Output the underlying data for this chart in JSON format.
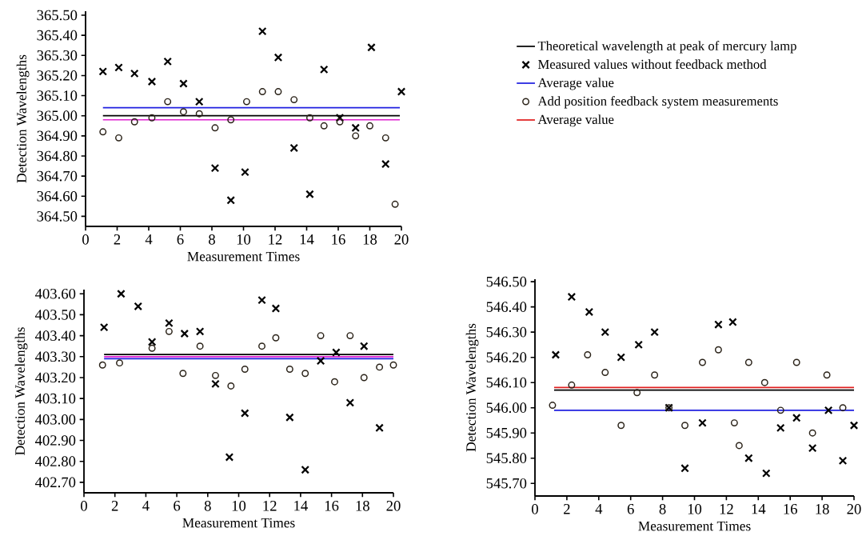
{
  "chart_data": [
    {
      "type": "scatter",
      "xlabel": "Measurement Times",
      "ylabel": "Detection Wavelengths",
      "xlim": [
        0,
        20
      ],
      "ylim": [
        364.45,
        365.52
      ],
      "xticks": [
        0,
        2,
        4,
        6,
        8,
        10,
        12,
        14,
        16,
        18,
        20
      ],
      "yticks": [
        {
          "value": 364.5,
          "label": "364.50"
        },
        {
          "value": 364.6,
          "label": "364.60"
        },
        {
          "value": 364.7,
          "label": "364.70"
        },
        {
          "value": 364.8,
          "label": "364.80"
        },
        {
          "value": 364.9,
          "label": "364.90"
        },
        {
          "value": 365.0,
          "label": "365.00"
        },
        {
          "value": 365.1,
          "label": "365.10"
        },
        {
          "value": 365.2,
          "label": "365.20"
        },
        {
          "value": 365.3,
          "label": "365.30"
        },
        {
          "value": 365.4,
          "label": "365.40"
        },
        {
          "value": 365.5,
          "label": "365.50"
        }
      ],
      "series": [
        {
          "type": "line",
          "color": "#000000",
          "x": [
            1.1,
            19.9
          ],
          "values": [
            365.0,
            365.0
          ]
        },
        {
          "marker": "cross",
          "color": "#000000",
          "x": [
            1.1,
            2.1,
            3.1,
            4.2,
            5.2,
            6.2,
            7.2,
            8.2,
            9.2,
            10.1,
            11.2,
            12.2,
            13.2,
            14.2,
            15.1,
            16.1,
            17.1,
            18.1,
            19.0,
            20.0
          ],
          "values": [
            365.22,
            365.24,
            365.21,
            365.17,
            365.27,
            365.16,
            365.07,
            364.74,
            364.58,
            364.72,
            365.42,
            365.29,
            364.84,
            364.61,
            365.23,
            364.99,
            364.94,
            365.34,
            364.76,
            365.12
          ]
        },
        {
          "type": "line",
          "color": "#2020e0",
          "x": [
            1.1,
            19.9
          ],
          "values": [
            365.04,
            365.04
          ]
        },
        {
          "marker": "circle",
          "color": "#2a2218",
          "x": [
            1.1,
            2.1,
            3.1,
            4.2,
            5.2,
            6.2,
            7.2,
            8.2,
            9.2,
            10.2,
            11.2,
            12.2,
            13.2,
            14.2,
            15.1,
            16.1,
            17.1,
            18.0,
            19.0,
            19.6
          ],
          "values": [
            364.92,
            364.89,
            364.97,
            364.99,
            365.07,
            365.02,
            365.01,
            364.94,
            364.98,
            365.07,
            365.12,
            365.12,
            365.08,
            364.99,
            364.95,
            364.97,
            364.9,
            364.95,
            364.89,
            364.56
          ]
        },
        {
          "type": "line",
          "color": "#e020d0",
          "x": [
            1.1,
            19.9
          ],
          "values": [
            364.98,
            364.98
          ]
        }
      ]
    },
    {
      "type": "scatter",
      "xlabel": "Measurement Times",
      "ylabel": "Detection Wavelengths",
      "xlim": [
        0,
        20
      ],
      "ylim": [
        402.65,
        403.62
      ],
      "xticks": [
        0,
        2,
        4,
        6,
        8,
        10,
        12,
        14,
        16,
        18,
        20
      ],
      "yticks": [
        {
          "value": 402.7,
          "label": "402.70"
        },
        {
          "value": 402.8,
          "label": "402.80"
        },
        {
          "value": 402.9,
          "label": "402.90"
        },
        {
          "value": 403.0,
          "label": "403.00"
        },
        {
          "value": 403.1,
          "label": "403.10"
        },
        {
          "value": 403.2,
          "label": "403.20"
        },
        {
          "value": 403.3,
          "label": "403.30"
        },
        {
          "value": 403.4,
          "label": "403.40"
        },
        {
          "value": 403.5,
          "label": "403.50"
        },
        {
          "value": 403.6,
          "label": "403.60"
        }
      ],
      "series": [
        {
          "type": "line",
          "color": "#000000",
          "x": [
            1.3,
            20.0
          ],
          "values": [
            403.31,
            403.31
          ]
        },
        {
          "marker": "cross",
          "color": "#000000",
          "x": [
            1.3,
            2.4,
            3.5,
            4.4,
            5.5,
            6.5,
            7.5,
            8.5,
            9.4,
            10.4,
            11.5,
            12.4,
            13.3,
            14.3,
            15.3,
            16.3,
            17.2,
            18.1,
            19.1
          ],
          "values": [
            403.44,
            403.6,
            403.54,
            403.37,
            403.46,
            403.41,
            403.42,
            403.17,
            402.82,
            403.03,
            403.57,
            403.53,
            403.01,
            402.76,
            403.28,
            403.32,
            403.08,
            403.35,
            402.96
          ]
        },
        {
          "type": "line",
          "color": "#2020e0",
          "x": [
            1.3,
            20.0
          ],
          "values": [
            403.29,
            403.29
          ]
        },
        {
          "marker": "circle",
          "color": "#2a2218",
          "x": [
            1.2,
            2.3,
            4.4,
            5.5,
            6.4,
            7.5,
            8.5,
            9.5,
            10.4,
            11.5,
            12.4,
            13.3,
            14.3,
            15.3,
            16.2,
            17.2,
            18.1,
            19.1,
            20.0
          ],
          "values": [
            403.26,
            403.27,
            403.34,
            403.42,
            403.22,
            403.35,
            403.21,
            403.16,
            403.24,
            403.35,
            403.39,
            403.24,
            403.22,
            403.4,
            403.18,
            403.4,
            403.2,
            403.25,
            403.26
          ]
        },
        {
          "type": "line",
          "color": "#e020d0",
          "x": [
            1.3,
            20.0
          ],
          "values": [
            403.3,
            403.3
          ]
        }
      ]
    },
    {
      "type": "scatter",
      "xlabel": "Measurement Times",
      "ylabel": "Detection Wavelengths",
      "xlim": [
        0,
        20
      ],
      "ylim": [
        545.65,
        546.51
      ],
      "xticks": [
        0,
        2,
        4,
        6,
        8,
        10,
        12,
        14,
        16,
        18,
        20
      ],
      "legend": "top left",
      "yticks": [
        {
          "value": 545.7,
          "label": "545.70"
        },
        {
          "value": 545.8,
          "label": "545.80"
        },
        {
          "value": 545.9,
          "label": "545.90"
        },
        {
          "value": 546.0,
          "label": "546.00"
        },
        {
          "value": 546.1,
          "label": "546.10"
        },
        {
          "value": 546.2,
          "label": "546.20"
        },
        {
          "value": 546.3,
          "label": "546.30"
        },
        {
          "value": 546.4,
          "label": "546.40"
        },
        {
          "value": 546.5,
          "label": "546.50"
        }
      ],
      "series": [
        {
          "type": "line",
          "name": "Theoretical wavelength at peak of mercury lamp",
          "color": "#000000",
          "x": [
            1.2,
            20.0
          ],
          "values": [
            546.07,
            546.07
          ]
        },
        {
          "name": "Measured values without feedback method",
          "marker": "cross",
          "color": "#000000",
          "x": [
            1.3,
            2.3,
            3.4,
            4.4,
            5.4,
            6.5,
            7.5,
            8.4,
            9.4,
            10.5,
            11.5,
            12.4,
            13.4,
            14.5,
            15.4,
            16.4,
            17.4,
            18.4,
            19.3,
            20.0
          ],
          "values": [
            546.21,
            546.44,
            546.38,
            546.3,
            546.2,
            546.25,
            546.3,
            546.0,
            545.76,
            545.94,
            546.33,
            546.34,
            545.8,
            545.74,
            545.92,
            545.96,
            545.84,
            545.99,
            545.79,
            545.93
          ]
        },
        {
          "type": "line",
          "name": "Average value",
          "color": "#2020e0",
          "x": [
            1.2,
            20.0
          ],
          "values": [
            545.99,
            545.99
          ]
        },
        {
          "name": "Add position feedback system measurements",
          "marker": "circle",
          "color": "#2a2218",
          "x": [
            1.1,
            2.3,
            3.3,
            4.4,
            5.4,
            6.4,
            7.5,
            8.4,
            9.4,
            10.5,
            11.5,
            12.5,
            12.8,
            13.4,
            14.4,
            15.4,
            16.4,
            17.4,
            18.3,
            19.3
          ],
          "values": [
            546.01,
            546.09,
            546.21,
            546.14,
            545.93,
            546.06,
            546.13,
            546.0,
            545.93,
            546.18,
            546.23,
            545.94,
            545.85,
            546.18,
            546.1,
            545.99,
            546.18,
            545.9,
            546.13,
            546.0
          ]
        },
        {
          "type": "line",
          "name": "Average value",
          "color": "#e02020",
          "x": [
            1.2,
            20.0
          ],
          "values": [
            546.08,
            546.08
          ]
        }
      ]
    }
  ]
}
